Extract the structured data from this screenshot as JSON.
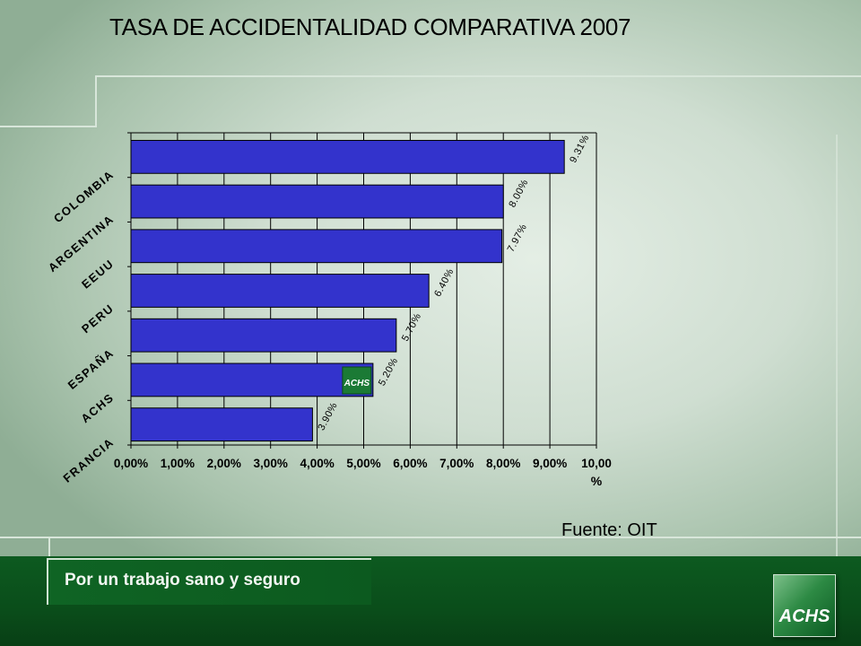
{
  "title": "TASA DE ACCIDENTALIDAD COMPARATIVA 2007",
  "source": "Fuente: OIT",
  "footer": {
    "slogan": "Por un trabajo sano y seguro",
    "logo_text": "ACHS"
  },
  "colors": {
    "bar_fill": "#3333cc",
    "footer_green": "#0a4d1a",
    "background": "#cfded1"
  },
  "chart_data": {
    "type": "bar",
    "orientation": "horizontal",
    "categories": [
      "COLOMBIA",
      "ARGENTINA",
      "EEUU",
      "PERU",
      "ESPAÑA",
      "ACHS",
      "FRANCIA"
    ],
    "values": [
      9.31,
      8.0,
      7.97,
      6.4,
      5.7,
      5.2,
      3.9
    ],
    "data_labels": [
      "9.31%",
      "8.00%",
      "7.97%",
      "6.40%",
      "5.70%",
      "5.20%",
      "3.90%"
    ],
    "x_ticks": [
      "0,00%",
      "1,00%",
      "2,00%",
      "3,00%",
      "4,00%",
      "5,00%",
      "6,00%",
      "7,00%",
      "8,00%",
      "9,00%",
      "10,00"
    ],
    "x_unit": "%",
    "xlim": [
      0,
      10
    ],
    "grid": true,
    "badge": {
      "category": "ACHS",
      "text": "ACHS"
    }
  }
}
